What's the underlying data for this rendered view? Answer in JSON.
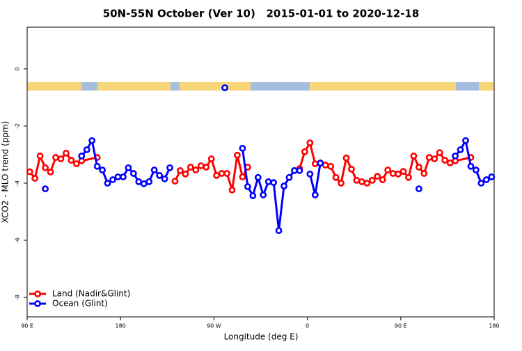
{
  "chart_data": {
    "type": "line",
    "title": "50N-55N October (Ver 10)   2015-01-01 to 2020-12-18",
    "x_label": "Longitude (deg E)",
    "y_label": "XCO2 - MLO trend (ppm)",
    "xlim": [
      90,
      540
    ],
    "ylim": [
      -8.68,
      1.46
    ],
    "xticks": [
      {
        "value": 90,
        "label": "90 E"
      },
      180,
      {
        "value": 270,
        "label": "90 W"
      },
      {
        "value": 360,
        "label": "0"
      },
      {
        "value": 450,
        "label": "90 E"
      },
      {
        "value": 540,
        "label": "180"
      }
    ],
    "yticks": [
      0,
      -2,
      -4,
      -6,
      -8
    ],
    "legend": "bottom-left",
    "region_marker": {
      "x": 280.5,
      "value": -0.66,
      "color": "#0000ff"
    },
    "series": [
      {
        "name": "Land (Nadir&Glint)",
        "color": "#ff0000",
        "x": [
          92.5,
          97.5,
          102.5,
          107.5,
          112.5,
          117.5,
          122.5,
          127.5,
          132.5,
          137.5,
          142.5,
          157.5,
          null,
          232.5,
          237.5,
          242.5,
          247.5,
          252.5,
          257.5,
          262.5,
          267.5,
          272.5,
          277.5,
          282.5,
          287.5,
          292.5,
          297.5,
          302.5,
          null,
          352.5,
          357.5,
          362.5,
          367.5,
          372.5,
          377.5,
          382.5,
          387.5,
          392.5,
          397.5,
          402.5,
          407.5,
          412.5,
          417.5,
          422.5,
          427.5,
          432.5,
          437.5,
          442.5,
          447.5,
          452.5,
          457.5,
          462.5,
          467.5,
          472.5,
          477.5,
          482.5,
          487.5,
          492.5,
          497.5,
          502.5,
          517.5
        ],
        "values": [
          -3.6,
          -3.83,
          -3.05,
          -3.46,
          -3.61,
          -3.1,
          -3.15,
          -2.95,
          -3.2,
          -3.32,
          -3.22,
          -3.1,
          null,
          -3.93,
          -3.56,
          -3.68,
          -3.44,
          -3.54,
          -3.39,
          -3.44,
          -3.15,
          -3.73,
          -3.66,
          -3.66,
          -4.24,
          -3.02,
          -3.78,
          -3.44,
          null,
          -3.49,
          -2.9,
          -2.59,
          -3.32,
          -3.29,
          -3.37,
          -3.41,
          -3.8,
          -4.0,
          -3.12,
          -3.51,
          -3.9,
          -3.95,
          -4.0,
          -3.9,
          -3.76,
          -3.88,
          -3.54,
          -3.66,
          -3.68,
          -3.59,
          -3.8,
          -3.05,
          -3.44,
          -3.66,
          -3.1,
          -3.15,
          -2.93,
          -3.2,
          -3.29,
          -3.22,
          -3.1
        ]
      },
      {
        "name": "Ocean (Glint)",
        "color": "#0000ff",
        "x": [
          107.5,
          null,
          142.5,
          147.5,
          152.5,
          157.5,
          162.5,
          167.5,
          172.5,
          177.5,
          182.5,
          187.5,
          192.5,
          197.5,
          202.5,
          207.5,
          212.5,
          217.5,
          222.5,
          227.5,
          null,
          297.5,
          302.5,
          307.5,
          312.5,
          317.5,
          322.5,
          327.5,
          332.5,
          337.5,
          342.5,
          347.5,
          352.5,
          null,
          362.5,
          367.5,
          372.5,
          null,
          467.5,
          null,
          502.5,
          507.5,
          512.5,
          517.5,
          522.5,
          527.5,
          532.5,
          537.5
        ],
        "values": [
          -4.2,
          null,
          -3.05,
          -2.83,
          -2.51,
          -3.41,
          -3.54,
          -4.0,
          -3.88,
          -3.78,
          -3.78,
          -3.46,
          -3.66,
          -3.95,
          -4.02,
          -3.95,
          -3.54,
          -3.73,
          -3.85,
          -3.46,
          null,
          -2.78,
          -4.12,
          -4.44,
          -3.8,
          -4.41,
          -3.95,
          -3.98,
          -5.66,
          -4.1,
          -3.8,
          -3.56,
          -3.56,
          null,
          -3.68,
          -4.41,
          -3.3,
          null,
          -4.2,
          null,
          -3.05,
          -2.83,
          -2.51,
          -3.41,
          -3.54,
          -4.0,
          -3.88,
          -3.78
        ]
      }
    ]
  }
}
